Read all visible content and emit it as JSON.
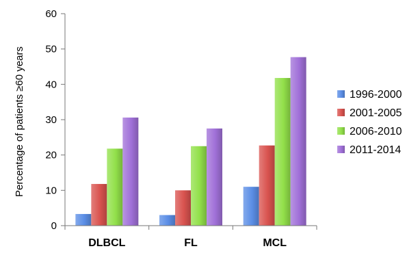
{
  "chart_data": {
    "type": "bar",
    "categories": [
      "DLBCL",
      "FL",
      "MCL"
    ],
    "series": [
      {
        "name": "1996-2000",
        "values": [
          3.3,
          3.0,
          11.0
        ],
        "color": "#5b8ee6"
      },
      {
        "name": "2001-2005",
        "values": [
          11.8,
          10.0,
          22.7
        ],
        "color": "#d9534f"
      },
      {
        "name": "2006-2010",
        "values": [
          21.8,
          22.5,
          41.8
        ],
        "color": "#92e04a"
      },
      {
        "name": "2011-2014",
        "values": [
          30.6,
          27.5,
          47.7
        ],
        "color": "#a070d8"
      }
    ],
    "title": "",
    "xlabel": "",
    "ylabel": "Percentage of patients ≥60 years",
    "ylim": [
      0,
      60
    ],
    "yticks": [
      "0",
      "10",
      "20",
      "30",
      "40",
      "50",
      "60"
    ],
    "grid": false,
    "legend": "right"
  }
}
